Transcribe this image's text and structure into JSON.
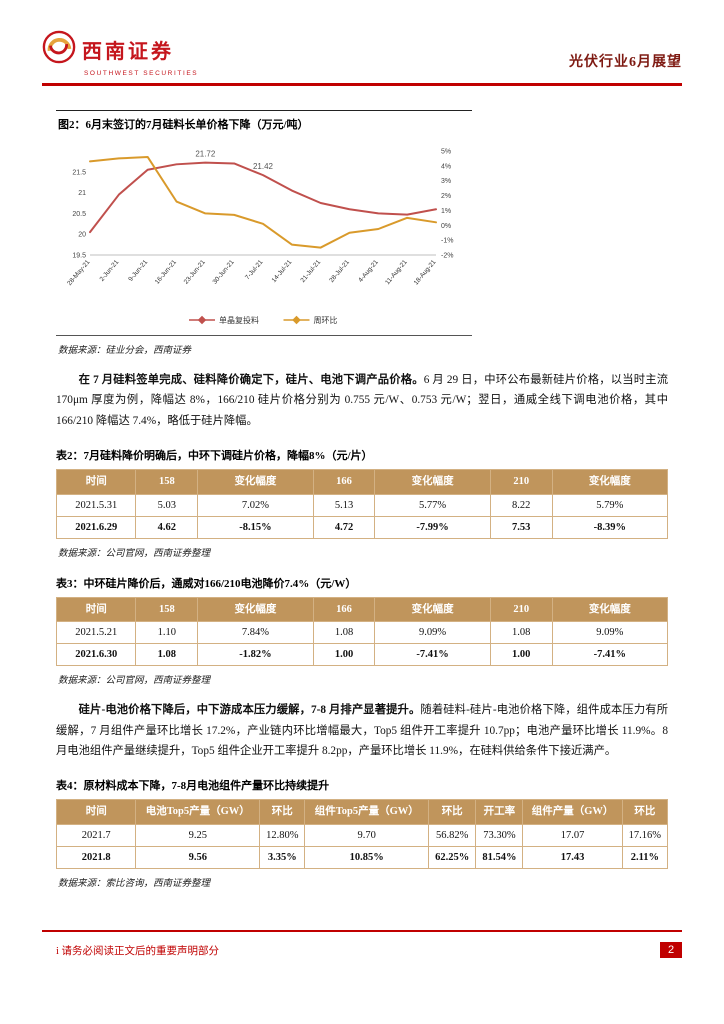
{
  "header": {
    "brand_cn": "西南证券",
    "brand_en": "SOUTHWEST SECURITIES",
    "report_title": "光伏行业6月展望"
  },
  "figure": {
    "caption": "图2：6月末签订的7月硅料长单价格下降（万元/吨）",
    "source": "数据来源：硅业分会，西南证券"
  },
  "chart_data": {
    "type": "line",
    "title": "图2：6月末签订的7月硅料长单价格下降（万元/吨）",
    "categories": [
      "28-May-21",
      "2-Jun-21",
      "9-Jun-21",
      "16-Jun-21",
      "23-Jun-21",
      "30-Jun-21",
      "7-Jul-21",
      "14-Jul-21",
      "21-Jul-21",
      "28-Jul-21",
      "4-Aug-21",
      "11-Aug-21",
      "18-Aug-21"
    ],
    "series": [
      {
        "name": "单晶复投料",
        "axis": "left",
        "color": "#c0504d",
        "values": [
          20.05,
          20.95,
          21.55,
          21.68,
          21.72,
          21.7,
          21.42,
          21.05,
          20.75,
          20.6,
          20.5,
          20.47,
          20.6
        ],
        "annotations": [
          {
            "index": 4,
            "label": "21.72"
          },
          {
            "index": 6,
            "label": "21.42"
          }
        ]
      },
      {
        "name": "周环比",
        "axis": "right",
        "color": "#d99a2b",
        "values": [
          4.3,
          4.5,
          4.6,
          1.6,
          0.8,
          0.7,
          0.1,
          -1.3,
          -1.5,
          -0.5,
          -0.25,
          0.5,
          0.2
        ]
      }
    ],
    "left_axis": {
      "min": 19.5,
      "max": 22.0,
      "ticks": [
        "21.5",
        "21",
        "20.5",
        "20",
        "19.5"
      ],
      "unit": "万元/吨"
    },
    "right_axis": {
      "min": -2,
      "max": 5,
      "ticks": [
        "5%",
        "4%",
        "3%",
        "2%",
        "1%",
        "0%",
        "-1%",
        "-2%"
      ]
    },
    "legend_position": "bottom",
    "grid": false
  },
  "paragraphs": [
    {
      "bold": "在 7 月硅料签单完成、硅料降价确定下，硅片、电池下调产品价格。",
      "text": "6 月 29 日，中环公布最新硅片价格，以当时主流 170μm 厚度为例，降幅达 8%，166/210 硅片价格分别为 0.755 元/W、0.753 元/W；翌日，通威全线下调电池价格，其中 166/210 降幅达 7.4%，略低于硅片降幅。"
    },
    {
      "bold": "硅片-电池价格下降后，中下游成本压力缓解，7-8 月排产显著提升。",
      "text": "随着硅料-硅片-电池价格下降，组件成本压力有所缓解，7 月组件产量环比增长 17.2%，产业链内环比增幅最大，Top5 组件开工率提升 10.7pp；电池产量环比增长 11.9%。8 月电池组件产量继续提升，Top5 组件企业开工率提升 8.2pp，产量环比增长 11.9%，在硅料供给条件下接近满产。"
    }
  ],
  "tables": [
    {
      "caption": "表2：7月硅料降价明确后，中环下调硅片价格，降幅8%（元/片）",
      "headers": [
        "时间",
        "158",
        "变化幅度",
        "166",
        "变化幅度",
        "210",
        "变化幅度"
      ],
      "rows": [
        {
          "bold": false,
          "cells": [
            "2021.5.31",
            "5.03",
            "7.02%",
            "5.13",
            "5.77%",
            "8.22",
            "5.79%"
          ]
        },
        {
          "bold": true,
          "cells": [
            "2021.6.29",
            "4.62",
            "-8.15%",
            "4.72",
            "-7.99%",
            "7.53",
            "-8.39%"
          ]
        }
      ],
      "source": "数据来源：公司官网，西南证券整理"
    },
    {
      "caption": "表3：中环硅片降价后，通威对166/210电池降价7.4%（元/W）",
      "headers": [
        "时间",
        "158",
        "变化幅度",
        "166",
        "变化幅度",
        "210",
        "变化幅度"
      ],
      "rows": [
        {
          "bold": false,
          "cells": [
            "2021.5.21",
            "1.10",
            "7.84%",
            "1.08",
            "9.09%",
            "1.08",
            "9.09%"
          ]
        },
        {
          "bold": true,
          "cells": [
            "2021.6.30",
            "1.08",
            "-1.82%",
            "1.00",
            "-7.41%",
            "1.00",
            "-7.41%"
          ]
        }
      ],
      "source": "数据来源：公司官网，西南证券整理"
    },
    {
      "caption": "表4：原材料成本下降，7-8月电池组件产量环比持续提升",
      "headers": [
        "时间",
        "电池Top5产量（GW）",
        "环比",
        "组件Top5产量（GW）",
        "环比",
        "开工率",
        "组件产量（GW）",
        "环比"
      ],
      "rows": [
        {
          "bold": false,
          "cells": [
            "2021.7",
            "9.25",
            "12.80%",
            "9.70",
            "56.82%",
            "73.30%",
            "17.07",
            "17.16%"
          ]
        },
        {
          "bold": true,
          "cells": [
            "2021.8",
            "9.56",
            "3.35%",
            "10.85%",
            "62.25%",
            "81.54%",
            "17.43",
            "2.11%"
          ]
        }
      ],
      "source": "数据来源：索比咨询，西南证券整理"
    }
  ],
  "footer": {
    "notice": "i 请务必阅读正文后的重要声明部分",
    "page_number": "2"
  }
}
